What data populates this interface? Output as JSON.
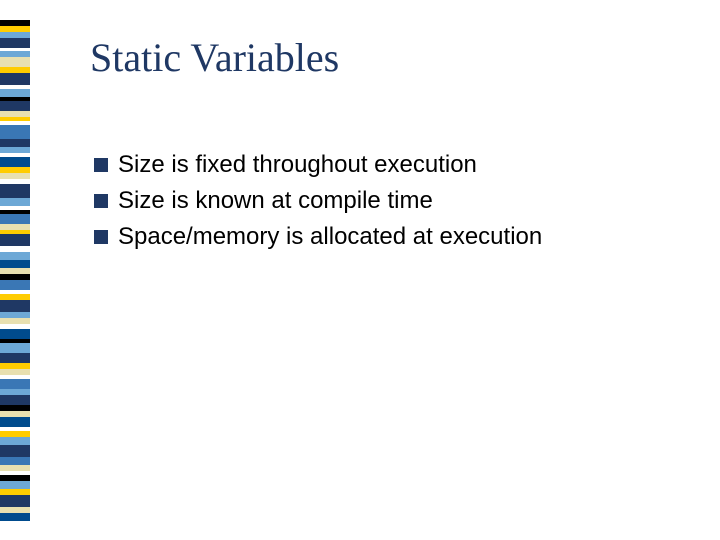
{
  "title": {
    "text": "Static Variables",
    "color": "#1f3864"
  },
  "bullets": {
    "marker_color": "#1f3864",
    "text_color": "#000000",
    "items": [
      "Size is fixed throughout execution",
      "Size is known at compile time",
      "Space/memory is allocated at execution"
    ]
  },
  "stripes": {
    "width": 30,
    "segments": [
      {
        "color": "#000000",
        "height": 6
      },
      {
        "color": "#ffcc00",
        "height": 6
      },
      {
        "color": "#6da8d6",
        "height": 6
      },
      {
        "color": "#1f3864",
        "height": 10
      },
      {
        "color": "#ffffff",
        "height": 3
      },
      {
        "color": "#6da8d6",
        "height": 6
      },
      {
        "color": "#e8e0b0",
        "height": 10
      },
      {
        "color": "#ffcc00",
        "height": 6
      },
      {
        "color": "#1f3864",
        "height": 12
      },
      {
        "color": "#ffffff",
        "height": 4
      },
      {
        "color": "#6da8d6",
        "height": 8
      },
      {
        "color": "#000000",
        "height": 4
      },
      {
        "color": "#1f3864",
        "height": 10
      },
      {
        "color": "#e8e0b0",
        "height": 6
      },
      {
        "color": "#ffcc00",
        "height": 4
      },
      {
        "color": "#ffffff",
        "height": 4
      },
      {
        "color": "#3a77b5",
        "height": 14
      },
      {
        "color": "#1f3864",
        "height": 8
      },
      {
        "color": "#6da8d6",
        "height": 6
      },
      {
        "color": "#ffffff",
        "height": 4
      },
      {
        "color": "#004b8d",
        "height": 10
      },
      {
        "color": "#ffcc00",
        "height": 6
      },
      {
        "color": "#e8e0b0",
        "height": 6
      },
      {
        "color": "#ffffff",
        "height": 5
      },
      {
        "color": "#1f3864",
        "height": 14
      },
      {
        "color": "#6da8d6",
        "height": 8
      },
      {
        "color": "#ffffff",
        "height": 4
      },
      {
        "color": "#000000",
        "height": 4
      },
      {
        "color": "#3a77b5",
        "height": 10
      },
      {
        "color": "#e8e0b0",
        "height": 6
      },
      {
        "color": "#ffcc00",
        "height": 4
      },
      {
        "color": "#1f3864",
        "height": 12
      },
      {
        "color": "#ffffff",
        "height": 6
      },
      {
        "color": "#6da8d6",
        "height": 8
      },
      {
        "color": "#004b8d",
        "height": 8
      },
      {
        "color": "#e8e0b0",
        "height": 6
      },
      {
        "color": "#000000",
        "height": 6
      },
      {
        "color": "#3a77b5",
        "height": 10
      },
      {
        "color": "#ffffff",
        "height": 4
      },
      {
        "color": "#ffcc00",
        "height": 6
      },
      {
        "color": "#1f3864",
        "height": 12
      },
      {
        "color": "#6da8d6",
        "height": 6
      },
      {
        "color": "#e8e0b0",
        "height": 6
      },
      {
        "color": "#ffffff",
        "height": 5
      },
      {
        "color": "#004b8d",
        "height": 10
      },
      {
        "color": "#000000",
        "height": 4
      },
      {
        "color": "#6da8d6",
        "height": 10
      },
      {
        "color": "#1f3864",
        "height": 10
      },
      {
        "color": "#ffcc00",
        "height": 6
      },
      {
        "color": "#e8e0b0",
        "height": 6
      },
      {
        "color": "#ffffff",
        "height": 4
      },
      {
        "color": "#3a77b5",
        "height": 10
      },
      {
        "color": "#6da8d6",
        "height": 6
      },
      {
        "color": "#1f3864",
        "height": 10
      },
      {
        "color": "#000000",
        "height": 6
      },
      {
        "color": "#e8e0b0",
        "height": 6
      },
      {
        "color": "#004b8d",
        "height": 10
      },
      {
        "color": "#ffffff",
        "height": 4
      },
      {
        "color": "#ffcc00",
        "height": 6
      },
      {
        "color": "#6da8d6",
        "height": 8
      },
      {
        "color": "#1f3864",
        "height": 12
      },
      {
        "color": "#3a77b5",
        "height": 8
      },
      {
        "color": "#e8e0b0",
        "height": 6
      },
      {
        "color": "#ffffff",
        "height": 4
      },
      {
        "color": "#000000",
        "height": 6
      },
      {
        "color": "#6da8d6",
        "height": 8
      },
      {
        "color": "#ffcc00",
        "height": 6
      },
      {
        "color": "#1f3864",
        "height": 12
      },
      {
        "color": "#e8e0b0",
        "height": 6
      },
      {
        "color": "#004b8d",
        "height": 8
      }
    ]
  }
}
